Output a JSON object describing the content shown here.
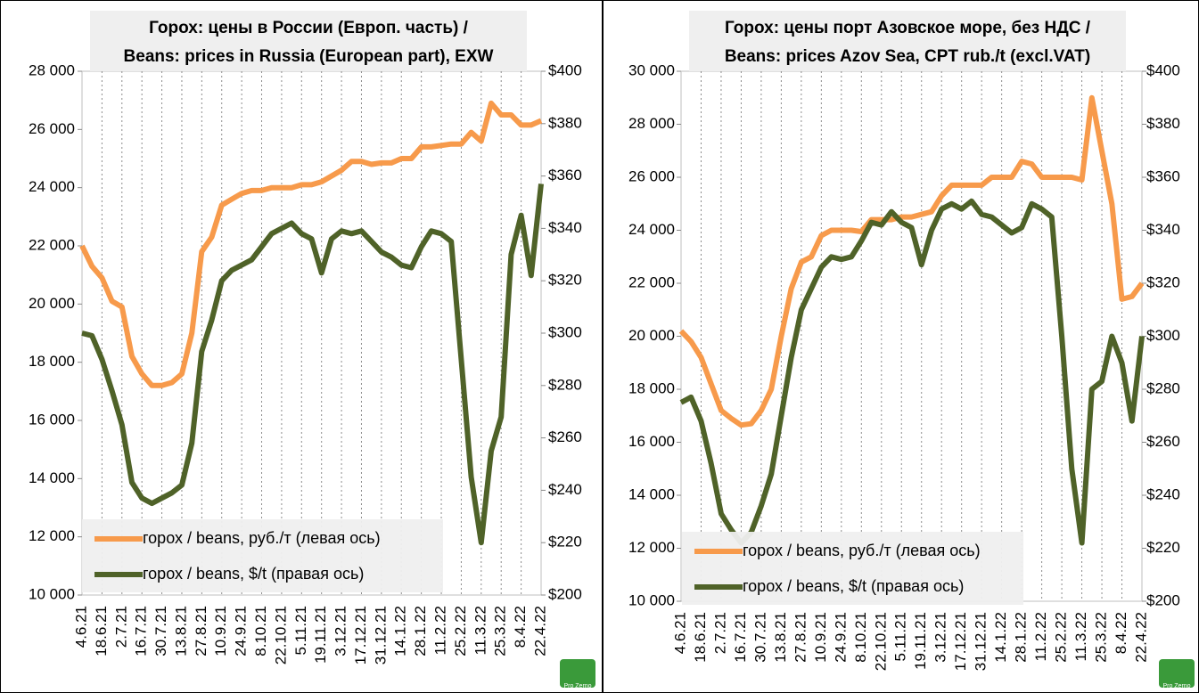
{
  "chart_data": [
    {
      "type": "line",
      "title": "Горох: цены в России (Европ. часть) /",
      "subtitle": "Beans: prices in Russia (European part), EXW",
      "categories": [
        "4.6.21",
        null,
        "18.6.21",
        null,
        "2.7.21",
        null,
        "16.7.21",
        null,
        "30.7.21",
        null,
        "13.8.21",
        null,
        "27.8.21",
        null,
        "10.9.21",
        null,
        "24.9.21",
        null,
        "8.10.21",
        null,
        "22.10.21",
        null,
        "5.11.21",
        null,
        "19.11.21",
        null,
        "3.12.21",
        null,
        "17.12.21",
        null,
        "31.12.21",
        null,
        "14.1.22",
        null,
        "28.1.22",
        null,
        "11.2.22",
        null,
        "25.2.22",
        null,
        "11.3.22",
        null,
        "25.3.22",
        null,
        "8.4.22",
        null,
        "22.4.22"
      ],
      "series": [
        {
          "name": "горох / beans, руб./т (левая ось)",
          "color": "#f79a4b",
          "values": [
            22000,
            21300,
            20900,
            20100,
            19900,
            18200,
            17600,
            17200,
            17200,
            17300,
            17600,
            19000,
            21800,
            22300,
            23400,
            23600,
            23800,
            23900,
            23900,
            24000,
            24000,
            24000,
            24100,
            24100,
            24200,
            24400,
            24600,
            24900,
            24900,
            24800,
            24850,
            24850,
            25000,
            25000,
            25400,
            25400,
            25450,
            25500,
            25500,
            25900,
            25600,
            26900,
            26500,
            26500,
            26150,
            26150,
            26300
          ]
        },
        {
          "name": "горох / beans, $/t  (правая ось)",
          "color": "#4f6228",
          "axis": "y2",
          "values": [
            300,
            299,
            290,
            278,
            265,
            243,
            237,
            235,
            237,
            239,
            242,
            258,
            293,
            305,
            320,
            324,
            326,
            328,
            333,
            338,
            340,
            342,
            338,
            336,
            323,
            336,
            339,
            338,
            339,
            335,
            331,
            329,
            326,
            325,
            333,
            339,
            338,
            335,
            290,
            245,
            220,
            255,
            268,
            330,
            345,
            322,
            357
          ]
        }
      ],
      "ylim": [
        10000,
        28000
      ],
      "yticks": [
        {
          "value": 10000,
          "label": "10 000"
        },
        {
          "value": 12000,
          "label": "12 000"
        },
        {
          "value": 14000,
          "label": "14 000"
        },
        {
          "value": 16000,
          "label": "16 000"
        },
        {
          "value": 18000,
          "label": "18 000"
        },
        {
          "value": 20000,
          "label": "20 000"
        },
        {
          "value": 22000,
          "label": "22 000"
        },
        {
          "value": 24000,
          "label": "24 000"
        },
        {
          "value": 26000,
          "label": "26 000"
        },
        {
          "value": 28000,
          "label": "28 000"
        }
      ],
      "y2lim": [
        200,
        400
      ],
      "y2ticks": [
        {
          "value": 200,
          "label": "$200"
        },
        {
          "value": 220,
          "label": "$220"
        },
        {
          "value": 240,
          "label": "$240"
        },
        {
          "value": 260,
          "label": "$260"
        },
        {
          "value": 280,
          "label": "$280"
        },
        {
          "value": 300,
          "label": "$300"
        },
        {
          "value": 320,
          "label": "$320"
        },
        {
          "value": 340,
          "label": "$340"
        },
        {
          "value": 360,
          "label": "$360"
        },
        {
          "value": 380,
          "label": "$380"
        },
        {
          "value": 400,
          "label": "$400"
        }
      ],
      "grid": "x",
      "legend": "lower left",
      "logo": "Pro Zerno"
    },
    {
      "type": "line",
      "title": "Горох: цены порт Азовское море, без НДС /",
      "subtitle": "Beans: prices Azov Sea, CPT rub./t (excl.VAT)",
      "categories": [
        "4.6.21",
        null,
        "18.6.21",
        null,
        "2.7.21",
        null,
        "16.7.21",
        null,
        "30.7.21",
        null,
        "13.8.21",
        null,
        "27.8.21",
        null,
        "10.9.21",
        null,
        "24.9.21",
        null,
        "8.10.21",
        null,
        "22.10.21",
        null,
        "5.11.21",
        null,
        "19.11.21",
        null,
        "3.12.21",
        null,
        "17.12.21",
        null,
        "31.12.21",
        null,
        "14.1.22",
        null,
        "28.1.22",
        null,
        "11.2.22",
        null,
        "25.2.22",
        null,
        "11.3.22",
        null,
        "25.3.22",
        null,
        "8.4.22",
        null,
        "22.4.22"
      ],
      "series": [
        {
          "name": "горох / beans, руб./т (левая ось)",
          "color": "#f79a4b",
          "values": [
            20200,
            19800,
            19200,
            18200,
            17200,
            16900,
            16650,
            16700,
            17200,
            18000,
            20000,
            21800,
            22800,
            23000,
            23800,
            24000,
            24000,
            24000,
            23950,
            24400,
            24400,
            24400,
            24500,
            24500,
            24600,
            24700,
            25300,
            25700,
            25700,
            25700,
            25700,
            26000,
            26000,
            26000,
            26600,
            26500,
            26000,
            26000,
            26000,
            26000,
            25900,
            29000,
            27000,
            25000,
            21400,
            21500,
            22000
          ]
        },
        {
          "name": "горох / beans, $/t (правая ось)",
          "color": "#4f6228",
          "axis": "y2",
          "values": [
            275,
            277,
            268,
            252,
            233,
            227,
            222,
            226,
            236,
            248,
            270,
            292,
            310,
            318,
            326,
            330,
            329,
            330,
            336,
            343,
            342,
            347,
            343,
            341,
            327,
            340,
            348,
            350,
            348,
            351,
            346,
            345,
            342,
            339,
            341,
            350,
            348,
            345,
            300,
            250,
            222,
            280,
            283,
            300,
            290,
            268,
            300
          ]
        }
      ],
      "ylim": [
        10000,
        30000
      ],
      "yticks": [
        {
          "value": 10000,
          "label": "10 000"
        },
        {
          "value": 12000,
          "label": "12 000"
        },
        {
          "value": 14000,
          "label": "14 000"
        },
        {
          "value": 16000,
          "label": "16 000"
        },
        {
          "value": 18000,
          "label": "18 000"
        },
        {
          "value": 20000,
          "label": "20 000"
        },
        {
          "value": 22000,
          "label": "22 000"
        },
        {
          "value": 24000,
          "label": "24 000"
        },
        {
          "value": 26000,
          "label": "26 000"
        },
        {
          "value": 28000,
          "label": "28 000"
        },
        {
          "value": 30000,
          "label": "30 000"
        }
      ],
      "y2lim": [
        200,
        400
      ],
      "y2ticks": [
        {
          "value": 200,
          "label": "$200"
        },
        {
          "value": 220,
          "label": "$220"
        },
        {
          "value": 240,
          "label": "$240"
        },
        {
          "value": 260,
          "label": "$260"
        },
        {
          "value": 280,
          "label": "$280"
        },
        {
          "value": 300,
          "label": "$300"
        },
        {
          "value": 320,
          "label": "$320"
        },
        {
          "value": 340,
          "label": "$340"
        },
        {
          "value": 360,
          "label": "$360"
        },
        {
          "value": 380,
          "label": "$380"
        },
        {
          "value": 400,
          "label": "$400"
        }
      ],
      "grid": "x",
      "legend": "lower left",
      "logo": "Pro Zerno"
    }
  ]
}
